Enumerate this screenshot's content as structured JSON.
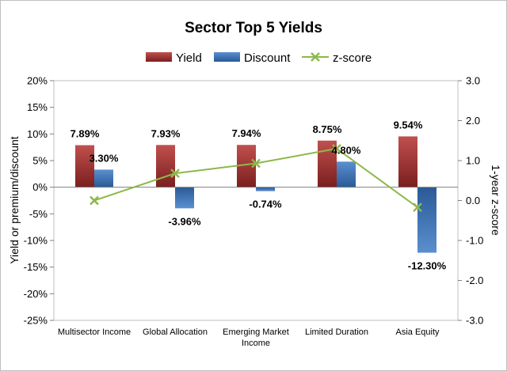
{
  "chart_data": {
    "type": "bar",
    "title": "Sector Top 5 Yields",
    "categories": [
      [
        "Multisector Income"
      ],
      [
        "Global Allocation"
      ],
      [
        "Emerging Market",
        "Income"
      ],
      [
        "Limited Duration"
      ],
      [
        "Asia Equity"
      ]
    ],
    "series": [
      {
        "name": "Yield",
        "type": "bar",
        "axis": "left",
        "color": "#a52a2a",
        "values": [
          7.89,
          7.93,
          7.94,
          8.75,
          9.54
        ],
        "labels": [
          "7.89%",
          "7.93%",
          "7.94%",
          "8.75%",
          "9.54%"
        ]
      },
      {
        "name": "Discount",
        "type": "bar",
        "axis": "left",
        "color": "#3a72b4",
        "values": [
          3.3,
          -3.96,
          -0.74,
          4.8,
          -12.3
        ],
        "labels": [
          "3.30%",
          "-3.96%",
          "-0.74%",
          "4.80%",
          "-12.30%"
        ]
      },
      {
        "name": "z-score",
        "type": "line",
        "axis": "right",
        "color": "#8db84a",
        "marker": "x",
        "values": [
          0.0,
          0.68,
          0.93,
          1.3,
          -0.17
        ]
      }
    ],
    "ylabel": "Yield or premium/discount",
    "y2label": "1-year z-score",
    "ylim": [
      -25,
      20
    ],
    "y2lim": [
      -3.0,
      3.0
    ],
    "yticks": [
      "20%",
      "15%",
      "10%",
      "5%",
      "0%",
      "-5%",
      "-10%",
      "-15%",
      "-20%",
      "-25%"
    ],
    "y2ticks": [
      "3.0",
      "2.0",
      "1.0",
      "0.0",
      "-1.0",
      "-2.0",
      "-3.0"
    ],
    "legend_position": "top",
    "grid": false
  }
}
